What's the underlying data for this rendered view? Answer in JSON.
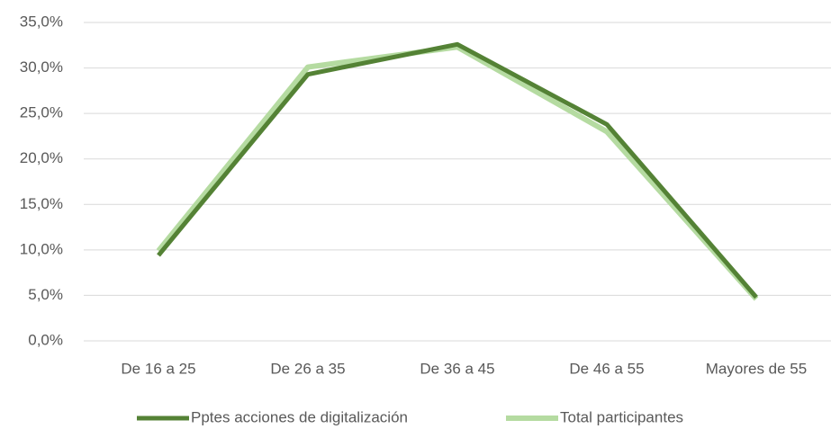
{
  "chart_data": {
    "type": "line",
    "categories": [
      "De 16 a 25",
      "De 26 a 35",
      "De 36 a 45",
      "De 46 a 55",
      "Mayores de 55"
    ],
    "series": [
      {
        "name": "Pptes acciones de digitalización",
        "color": "#548235",
        "values": [
          9.4,
          29.3,
          32.6,
          23.8,
          4.8
        ]
      },
      {
        "name": "Total participantes",
        "color": "#b5dba1",
        "values": [
          9.9,
          30.1,
          32.3,
          23.0,
          4.6
        ]
      }
    ],
    "ylim": [
      0,
      35
    ],
    "yticks": [
      {
        "value": 0,
        "label": "0,0%"
      },
      {
        "value": 5,
        "label": "5,0%"
      },
      {
        "value": 10,
        "label": "10,0%"
      },
      {
        "value": 15,
        "label": "15,0%"
      },
      {
        "value": 20,
        "label": "20,0%"
      },
      {
        "value": 25,
        "label": "25,0%"
      },
      {
        "value": 30,
        "label": "30,0%"
      },
      {
        "value": 35,
        "label": "35,0%"
      }
    ],
    "grid": true,
    "legend": "bottom"
  }
}
